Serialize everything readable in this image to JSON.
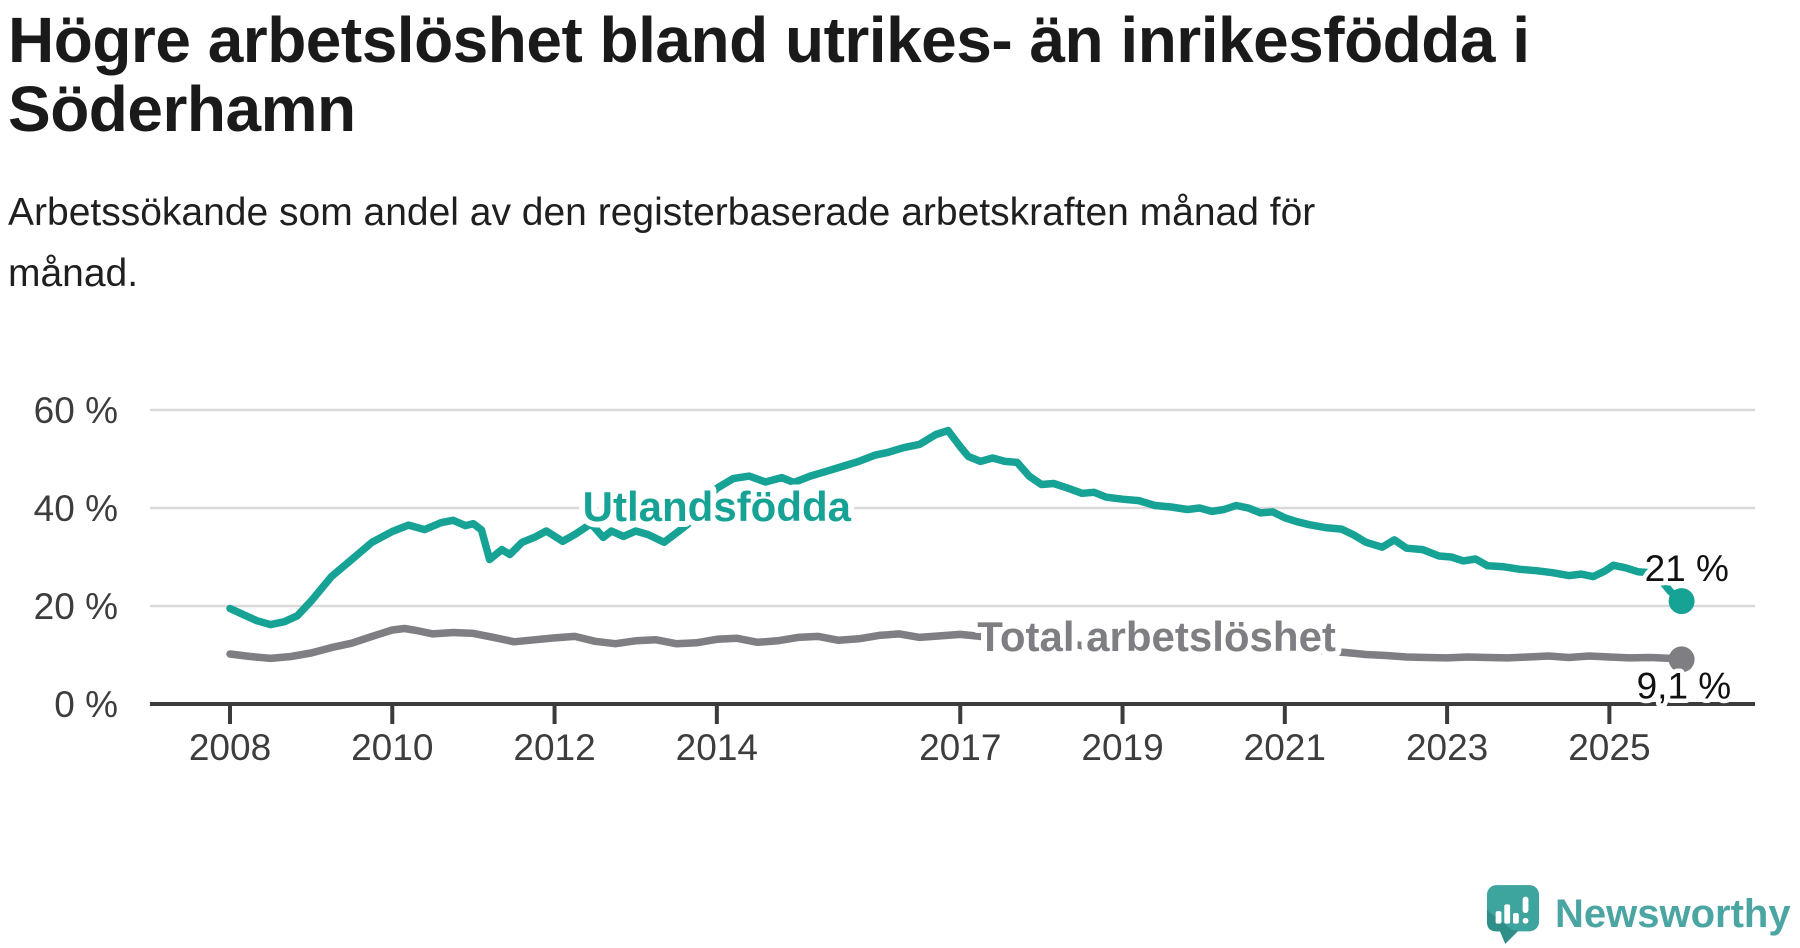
{
  "title": "Högre arbetslöshet bland utrikes- än inrikesfödda i\nSöderhamn",
  "subtitle": "Arbetssökande som andel av den registerbaserade arbetskraften månad för\nmånad.",
  "branding": {
    "logo_text": "Newsworthy",
    "logo_icon": "bar-chart-speech-bubble-icon"
  },
  "colors": {
    "accent_teal": "#16a294",
    "series_gray": "#7e7e83",
    "gridline": "#d9d9d9",
    "axis": "#3b3b3b",
    "tick_label": "#3d3d3d",
    "end_label": "#111111",
    "logo_bubble": "#3da49e",
    "logo_bubble_dark": "#2e8f89",
    "logo_text": "#4ba5a2"
  },
  "chart_data": {
    "type": "line",
    "unit": "%",
    "x_axis": {
      "ticks": [
        2008,
        2010,
        2012,
        2014,
        2017,
        2019,
        2021,
        2023,
        2025
      ],
      "range": [
        2007.0,
        2026.8
      ]
    },
    "y_axis": {
      "ticks": [
        0,
        20,
        40,
        60
      ],
      "tick_suffix": " %",
      "range": [
        0,
        62
      ],
      "gridlines": true
    },
    "series": [
      {
        "name": "Utlandsfödda",
        "color": "#16a294",
        "end_label": "21 %",
        "label_at": [
          2014.0,
          40.4
        ],
        "points": [
          [
            2008.0,
            19.5
          ],
          [
            2008.17,
            18.2
          ],
          [
            2008.33,
            17.0
          ],
          [
            2008.5,
            16.2
          ],
          [
            2008.67,
            16.8
          ],
          [
            2008.83,
            18.0
          ],
          [
            2009.0,
            21.0
          ],
          [
            2009.25,
            26.0
          ],
          [
            2009.5,
            29.5
          ],
          [
            2009.75,
            33.0
          ],
          [
            2010.0,
            35.2
          ],
          [
            2010.2,
            36.5
          ],
          [
            2010.4,
            35.6
          ],
          [
            2010.6,
            37.0
          ],
          [
            2010.75,
            37.5
          ],
          [
            2010.9,
            36.4
          ],
          [
            2011.0,
            36.8
          ],
          [
            2011.1,
            35.5
          ],
          [
            2011.2,
            29.5
          ],
          [
            2011.35,
            31.5
          ],
          [
            2011.45,
            30.5
          ],
          [
            2011.6,
            33.0
          ],
          [
            2011.75,
            34.0
          ],
          [
            2011.9,
            35.3
          ],
          [
            2012.1,
            33.2
          ],
          [
            2012.25,
            34.6
          ],
          [
            2012.45,
            36.8
          ],
          [
            2012.6,
            34.0
          ],
          [
            2012.7,
            35.3
          ],
          [
            2012.85,
            34.2
          ],
          [
            2013.0,
            35.3
          ],
          [
            2013.15,
            34.6
          ],
          [
            2013.35,
            33.0
          ],
          [
            2013.55,
            35.5
          ],
          [
            2013.7,
            37.5
          ],
          [
            2013.85,
            41.5
          ],
          [
            2014.0,
            44.0
          ],
          [
            2014.2,
            46.0
          ],
          [
            2014.4,
            46.5
          ],
          [
            2014.6,
            45.3
          ],
          [
            2014.8,
            46.2
          ],
          [
            2014.95,
            45.2
          ],
          [
            2015.15,
            46.5
          ],
          [
            2015.35,
            47.5
          ],
          [
            2015.55,
            48.5
          ],
          [
            2015.75,
            49.5
          ],
          [
            2015.95,
            50.8
          ],
          [
            2016.1,
            51.3
          ],
          [
            2016.3,
            52.3
          ],
          [
            2016.5,
            53.0
          ],
          [
            2016.7,
            55.0
          ],
          [
            2016.85,
            55.8
          ],
          [
            2017.0,
            52.5
          ],
          [
            2017.1,
            50.5
          ],
          [
            2017.25,
            49.5
          ],
          [
            2017.4,
            50.2
          ],
          [
            2017.55,
            49.5
          ],
          [
            2017.7,
            49.3
          ],
          [
            2017.85,
            46.5
          ],
          [
            2018.0,
            44.8
          ],
          [
            2018.15,
            45.0
          ],
          [
            2018.3,
            44.2
          ],
          [
            2018.5,
            43.0
          ],
          [
            2018.65,
            43.2
          ],
          [
            2018.8,
            42.2
          ],
          [
            2019.0,
            41.8
          ],
          [
            2019.2,
            41.5
          ],
          [
            2019.4,
            40.5
          ],
          [
            2019.6,
            40.2
          ],
          [
            2019.8,
            39.7
          ],
          [
            2019.95,
            40.0
          ],
          [
            2020.1,
            39.3
          ],
          [
            2020.25,
            39.7
          ],
          [
            2020.4,
            40.5
          ],
          [
            2020.55,
            40.0
          ],
          [
            2020.7,
            39.0
          ],
          [
            2020.85,
            39.2
          ],
          [
            2021.0,
            38.0
          ],
          [
            2021.15,
            37.2
          ],
          [
            2021.3,
            36.6
          ],
          [
            2021.5,
            36.0
          ],
          [
            2021.7,
            35.7
          ],
          [
            2021.85,
            34.5
          ],
          [
            2022.0,
            33.0
          ],
          [
            2022.2,
            32.0
          ],
          [
            2022.35,
            33.5
          ],
          [
            2022.5,
            31.8
          ],
          [
            2022.7,
            31.5
          ],
          [
            2022.9,
            30.2
          ],
          [
            2023.05,
            30.0
          ],
          [
            2023.2,
            29.2
          ],
          [
            2023.35,
            29.6
          ],
          [
            2023.5,
            28.2
          ],
          [
            2023.7,
            28.0
          ],
          [
            2023.9,
            27.5
          ],
          [
            2024.1,
            27.2
          ],
          [
            2024.3,
            26.8
          ],
          [
            2024.5,
            26.2
          ],
          [
            2024.65,
            26.5
          ],
          [
            2024.8,
            26.0
          ],
          [
            2024.95,
            27.2
          ],
          [
            2025.05,
            28.3
          ],
          [
            2025.2,
            27.8
          ],
          [
            2025.35,
            27.0
          ],
          [
            2025.5,
            26.8
          ],
          [
            2025.65,
            25.0
          ],
          [
            2025.75,
            23.0
          ],
          [
            2025.89,
            21.0
          ]
        ]
      },
      {
        "name": "Total arbetslöshet",
        "color": "#7e7e83",
        "end_label": "9,1 %",
        "label_at": [
          2019.42,
          13.9
        ],
        "points": [
          [
            2008.0,
            10.2
          ],
          [
            2008.25,
            9.7
          ],
          [
            2008.5,
            9.3
          ],
          [
            2008.75,
            9.7
          ],
          [
            2009.0,
            10.4
          ],
          [
            2009.25,
            11.5
          ],
          [
            2009.5,
            12.4
          ],
          [
            2009.75,
            13.8
          ],
          [
            2010.0,
            15.1
          ],
          [
            2010.15,
            15.4
          ],
          [
            2010.3,
            15.0
          ],
          [
            2010.5,
            14.3
          ],
          [
            2010.75,
            14.6
          ],
          [
            2011.0,
            14.4
          ],
          [
            2011.25,
            13.6
          ],
          [
            2011.5,
            12.7
          ],
          [
            2011.75,
            13.1
          ],
          [
            2012.0,
            13.5
          ],
          [
            2012.25,
            13.8
          ],
          [
            2012.5,
            12.8
          ],
          [
            2012.75,
            12.3
          ],
          [
            2013.0,
            12.9
          ],
          [
            2013.25,
            13.1
          ],
          [
            2013.5,
            12.3
          ],
          [
            2013.75,
            12.5
          ],
          [
            2014.0,
            13.2
          ],
          [
            2014.25,
            13.4
          ],
          [
            2014.5,
            12.6
          ],
          [
            2014.75,
            12.9
          ],
          [
            2015.0,
            13.6
          ],
          [
            2015.25,
            13.8
          ],
          [
            2015.5,
            13.0
          ],
          [
            2015.75,
            13.3
          ],
          [
            2016.0,
            14.0
          ],
          [
            2016.25,
            14.3
          ],
          [
            2016.5,
            13.6
          ],
          [
            2016.75,
            13.9
          ],
          [
            2017.0,
            14.2
          ],
          [
            2017.25,
            13.8
          ],
          [
            2017.5,
            13.1
          ],
          [
            2017.75,
            12.9
          ],
          [
            2018.0,
            12.4
          ],
          [
            2018.25,
            12.6
          ],
          [
            2018.5,
            11.9
          ],
          [
            2018.75,
            11.7
          ],
          [
            2019.0,
            12.0
          ],
          [
            2019.25,
            11.7
          ],
          [
            2019.5,
            11.1
          ],
          [
            2019.75,
            11.3
          ],
          [
            2020.0,
            11.6
          ],
          [
            2020.25,
            12.0
          ],
          [
            2020.5,
            12.3
          ],
          [
            2020.75,
            11.8
          ],
          [
            2021.0,
            11.5
          ],
          [
            2021.25,
            11.3
          ],
          [
            2021.5,
            10.8
          ],
          [
            2021.75,
            10.5
          ],
          [
            2022.0,
            10.1
          ],
          [
            2022.25,
            9.9
          ],
          [
            2022.5,
            9.6
          ],
          [
            2022.75,
            9.5
          ],
          [
            2023.0,
            9.4
          ],
          [
            2023.25,
            9.6
          ],
          [
            2023.5,
            9.5
          ],
          [
            2023.75,
            9.4
          ],
          [
            2024.0,
            9.6
          ],
          [
            2024.25,
            9.8
          ],
          [
            2024.5,
            9.5
          ],
          [
            2024.75,
            9.8
          ],
          [
            2025.0,
            9.6
          ],
          [
            2025.25,
            9.4
          ],
          [
            2025.5,
            9.5
          ],
          [
            2025.75,
            9.3
          ],
          [
            2025.89,
            9.1
          ]
        ]
      }
    ]
  }
}
